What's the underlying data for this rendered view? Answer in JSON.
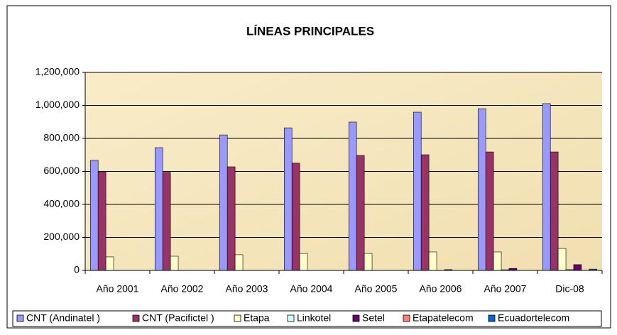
{
  "chart_data": {
    "type": "bar",
    "title": "LÍNEAS PRINCIPALES",
    "categories": [
      "Año 2001",
      "Año 2002",
      "Año 2003",
      "Año 2004",
      "Año 2005",
      "Año 2006",
      "Año 2007",
      "Dic-08"
    ],
    "series": [
      {
        "name": "CNT (Andinatel )",
        "color": "#9999ff",
        "values": [
          667000,
          744000,
          821000,
          864000,
          899000,
          959000,
          980000,
          1011000
        ]
      },
      {
        "name": "CNT (Pacifictel )",
        "color": "#993366",
        "values": [
          598000,
          594000,
          628000,
          650000,
          697000,
          701000,
          718000,
          718000
        ]
      },
      {
        "name": "Etapa",
        "color": "#ffffcc",
        "values": [
          82000,
          86000,
          95000,
          103000,
          103000,
          112000,
          112000,
          133000
        ]
      },
      {
        "name": "Linkotel",
        "color": "#ccffff",
        "values": [
          0,
          0,
          0,
          0,
          0,
          0,
          4000,
          5000
        ]
      },
      {
        "name": "Setel",
        "color": "#660066",
        "values": [
          0,
          0,
          0,
          0,
          0,
          5000,
          12000,
          35000
        ]
      },
      {
        "name": "Etapatelecom",
        "color": "#ff8080",
        "values": [
          0,
          0,
          0,
          0,
          0,
          0,
          0,
          0
        ]
      },
      {
        "name": "Ecuadortelecom",
        "color": "#0066cc",
        "values": [
          0,
          0,
          0,
          0,
          0,
          0,
          0,
          8000
        ]
      }
    ],
    "ylim": [
      0,
      1200000
    ],
    "yticks": [
      0,
      {
        "value": 200000,
        "label": "200,000"
      },
      {
        "value": 400000,
        "label": "400,000"
      },
      {
        "value": 600000,
        "label": "600,000"
      },
      {
        "value": 800000,
        "label": "800,000"
      },
      {
        "value": 1000000,
        "label": "1,000,000"
      },
      {
        "value": 1200000,
        "label": "1,200,000"
      }
    ],
    "grid": true,
    "legend": "bottom"
  }
}
